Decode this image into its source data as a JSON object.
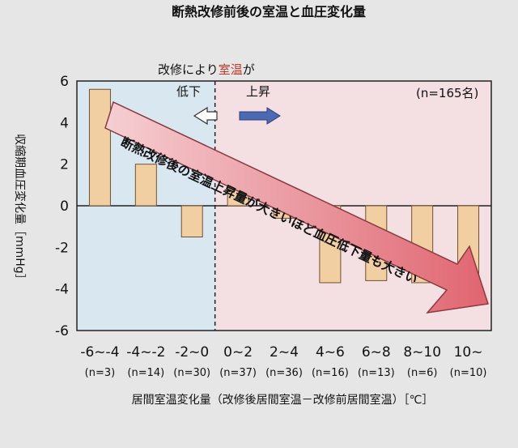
{
  "chart_data": {
    "type": "bar",
    "title": "断熱改修前後の室温と血圧変化量",
    "ylabel": "収縮期血圧変化量［mmHg］",
    "xlabel": "居間室温変化量（改修後居間室温－改修前居間室温）［℃］",
    "categories": [
      "-6~-4",
      "-4~-2",
      "-2~0",
      "0~2",
      "2~4",
      "4~6",
      "6~8",
      "8~10",
      "10~"
    ],
    "counts": [
      "(n=3)",
      "(n=14)",
      "(n=30)",
      "(n=37)",
      "(n=36)",
      "(n=16)",
      "(n=13)",
      "(n=6)",
      "(n=10)"
    ],
    "values": [
      5.6,
      2.0,
      -1.5,
      1.4,
      -0.6,
      -3.7,
      -3.6,
      -3.7,
      -3.7
    ],
    "ylim": [
      -6,
      6
    ],
    "yticks": [
      "6",
      "4",
      "2",
      "0",
      "-2",
      "-4",
      "-6"
    ],
    "ytick_values": [
      6,
      4,
      2,
      0,
      -2,
      -4,
      -6
    ],
    "grid": false,
    "annotations": {
      "sample": "(n=165名)",
      "header_a": "改修により",
      "header_b": "室温",
      "header_c": "が",
      "down": "低下",
      "up": "上昇",
      "arrow": "断熱改修後の室温上昇量が大きいほど血圧低下量も大きい"
    },
    "colors": {
      "bar": "#f2cfa2",
      "bar_stroke": "#6e5230",
      "left_region": "#d9e7f0",
      "right_region": "#f4dfe3",
      "arrow_fill": "#e4868d",
      "down_arrow": "#ffffff",
      "up_arrow": "#4b6ab3",
      "highlight": "#c0392b"
    }
  }
}
